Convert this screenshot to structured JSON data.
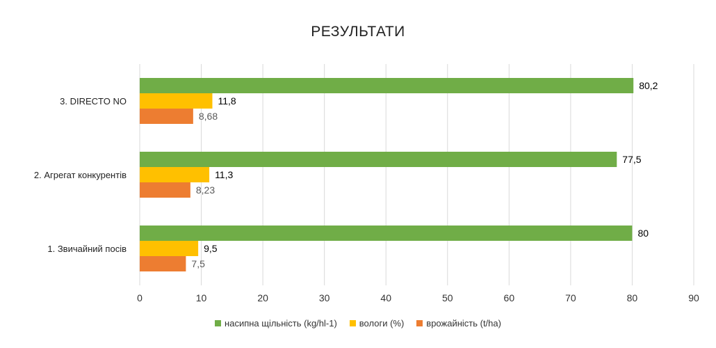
{
  "chart_data": {
    "type": "bar",
    "orientation": "horizontal",
    "title": "РЕЗУЛЬТАТИ",
    "categories": [
      "1. Звичайний посів",
      "2. Агрегат конкурентів",
      "3. DIRECTO NO"
    ],
    "series": [
      {
        "name": "насипна щільність (kg/hl-1)",
        "color": "#70AD47",
        "values": [
          80,
          77.5,
          80.2
        ],
        "labels": [
          "80",
          "77,5",
          "80,2"
        ]
      },
      {
        "name": "вологи (%)",
        "color": "#FFC000",
        "values": [
          9.5,
          11.3,
          11.8
        ],
        "labels": [
          "9,5",
          "11,3",
          "11,8"
        ]
      },
      {
        "name": "врожайність (t/ha)",
        "color": "#ED7D31",
        "values": [
          7.5,
          8.23,
          8.68
        ],
        "labels": [
          "7,5",
          "8,23",
          "8,68"
        ]
      }
    ],
    "xlim": [
      0,
      90
    ],
    "xticks": [
      "0",
      "10",
      "20",
      "30",
      "40",
      "50",
      "60",
      "70",
      "80",
      "90"
    ],
    "grid": "vertical",
    "legend": "bottom"
  }
}
